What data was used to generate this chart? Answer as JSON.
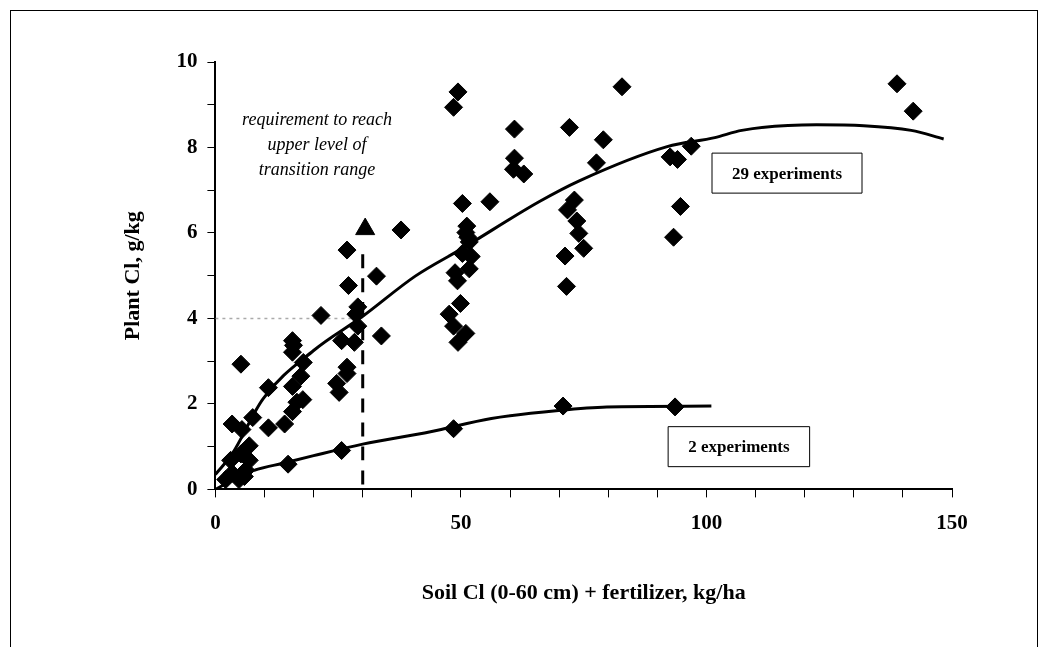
{
  "chart_data": {
    "type": "scatter",
    "xlabel": "Soil Cl (0-60 cm) + fertilizer, kg/ha",
    "ylabel": "Plant Cl, g/kg",
    "xlim": [
      0,
      150
    ],
    "ylim": [
      0,
      10
    ],
    "xticks": [
      0,
      {
        "value": 10,
        "label": null
      },
      {
        "value": 20,
        "label": null
      },
      {
        "value": 30,
        "label": null
      },
      {
        "value": 40,
        "label": null
      },
      50,
      {
        "value": 60,
        "label": null
      },
      {
        "value": 70,
        "label": null
      },
      {
        "value": 80,
        "label": null
      },
      {
        "value": 90,
        "label": null
      },
      100,
      {
        "value": 110,
        "label": null
      },
      {
        "value": 120,
        "label": null
      },
      {
        "value": 130,
        "label": null
      },
      {
        "value": 140,
        "label": null
      },
      150
    ],
    "yticks": [
      0,
      {
        "value": 1,
        "label": null
      },
      2,
      {
        "value": 3,
        "label": null
      },
      4,
      {
        "value": 5,
        "label": null
      },
      6,
      {
        "value": 7,
        "label": null
      },
      8,
      {
        "value": 9,
        "label": null
      },
      10
    ],
    "grid": false,
    "legend": false,
    "annotations": [
      "requirement to reach upper level of transition range",
      "29 experiments",
      "2 experiments"
    ],
    "series": [
      {
        "type": "scatter",
        "marker": "diamond",
        "color": "#000000",
        "x": [
          5.2,
          3.4,
          5.4,
          7.6,
          6.9,
          10.8,
          10.8,
          14.1,
          15.7,
          15.9,
          15.7,
          17.9,
          15.7,
          17.4,
          17.8,
          16.6,
          15.7,
          21.5,
          24.7,
          25.2,
          25.7,
          26.8,
          27.1,
          26.8,
          26.8,
          28.3,
          29,
          28.6,
          29,
          32.8,
          33.8,
          37.8,
          2.1,
          3.4,
          4.8,
          5.9,
          6.2,
          6.9,
          5.2,
          3.1,
          49.4,
          48.5,
          50.3,
          51.2,
          51,
          51.4,
          51.7,
          50.3,
          52.1,
          51.7,
          48.8,
          49.3,
          49.9,
          47.6,
          48.5,
          51,
          49.4,
          55.9,
          60.9,
          60.9,
          60.7,
          62.8,
          72.1,
          79,
          77.6,
          82.8,
          73.1,
          71.7,
          73.6,
          74,
          75,
          71.2,
          71.5,
          92.6,
          94.1,
          96.9,
          94.7,
          93.3,
          138.8,
          142.1
        ],
        "values": [
          2.93,
          1.53,
          1.4,
          1.68,
          1.02,
          2.38,
          1.44,
          1.53,
          3.48,
          3.37,
          3.21,
          2.97,
          2.41,
          2.65,
          2.1,
          2.04,
          1.82,
          4.07,
          2.48,
          2.27,
          3.48,
          5.6,
          4.77,
          2.86,
          2.71,
          3.44,
          4.27,
          4.1,
          3.82,
          4.99,
          3.59,
          6.07,
          0.23,
          0.38,
          0.23,
          0.3,
          0.45,
          0.68,
          0.83,
          0.68,
          9.3,
          8.94,
          6.69,
          6.16,
          6.01,
          5.9,
          5.79,
          5.52,
          5.45,
          5.16,
          5.07,
          4.88,
          4.35,
          4.1,
          3.82,
          3.65,
          3.44,
          6.73,
          8.43,
          7.75,
          7.49,
          7.38,
          8.47,
          8.18,
          7.64,
          9.42,
          6.77,
          6.54,
          6.28,
          5.99,
          5.64,
          5.46,
          4.75,
          7.78,
          7.72,
          8.03,
          6.62,
          5.9,
          9.49,
          8.85
        ]
      },
      {
        "type": "line",
        "marker": "none",
        "color": "#000000",
        "x": [
          0,
          3.4,
          9.7,
          20,
          30,
          40.7,
          50.3,
          65.9,
          74.1,
          92,
          101.7,
          107.2,
          122.4,
          132,
          141.7,
          148.3
        ],
        "values": [
          0.35,
          0.83,
          2.12,
          3.25,
          4.05,
          4.99,
          5.64,
          6.73,
          7.22,
          8.02,
          8.23,
          8.4,
          8.53,
          8.51,
          8.4,
          8.2
        ]
      },
      {
        "type": "scatter",
        "marker": "diamond",
        "color": "#000000",
        "x": [
          14.8,
          25.7,
          48.5,
          70.8,
          93.6
        ],
        "values": [
          0.59,
          0.91,
          1.42,
          1.95,
          1.93
        ]
      },
      {
        "type": "line",
        "marker": "none",
        "color": "#000000",
        "x": [
          0,
          6.2,
          14.8,
          20,
          30,
          43.8,
          56.2,
          70,
          79.7,
          101
        ],
        "values": [
          0,
          0.38,
          0.64,
          0.79,
          1.06,
          1.35,
          1.66,
          1.85,
          1.93,
          1.95
        ]
      },
      {
        "type": "scatter",
        "marker": "triangle",
        "color": "#000000",
        "x": [
          30.5
        ],
        "values": [
          6.09
        ]
      },
      {
        "type": "line",
        "marker": "none",
        "line_style": "dashed",
        "color": "#000000",
        "x": [
          30,
          30
        ],
        "values": [
          5.5,
          0
        ]
      },
      {
        "type": "line",
        "marker": "none",
        "line_style": "dotted",
        "color": "#aaaaaa",
        "x": [
          0,
          30
        ],
        "values": [
          4,
          4
        ]
      }
    ]
  }
}
